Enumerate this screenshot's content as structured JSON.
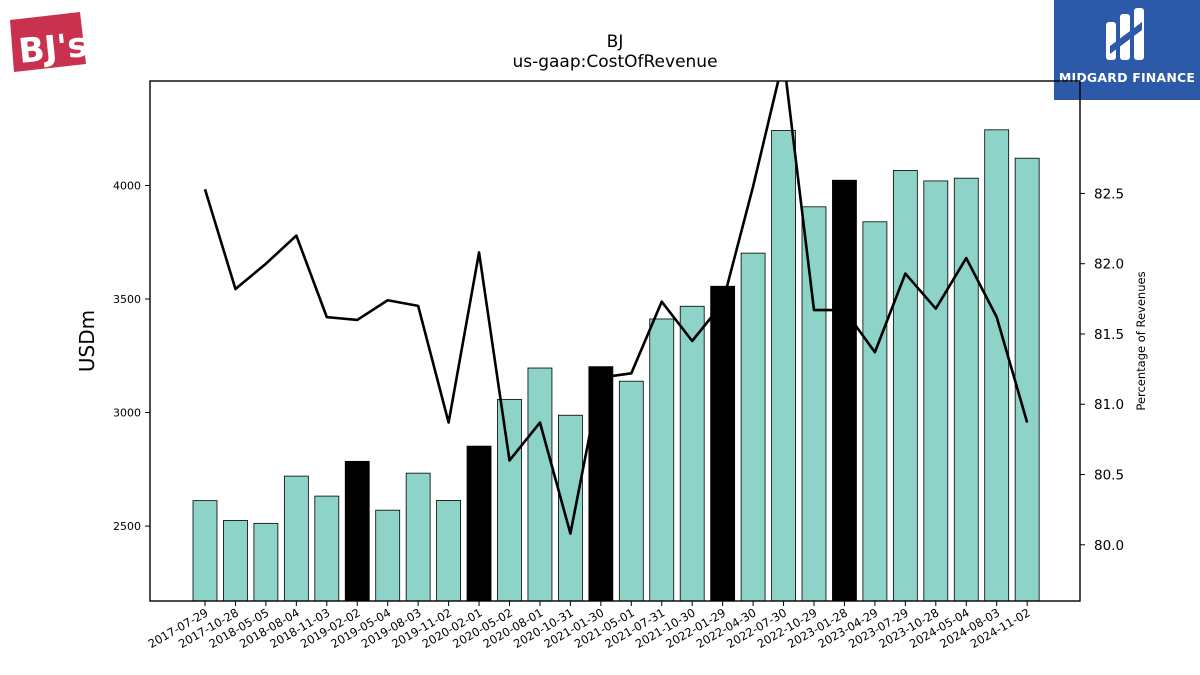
{
  "header": {
    "title": "BJ",
    "subtitle": "us-gaap:CostOfRevenue"
  },
  "logos": {
    "left": "BJ's",
    "right": "MIDGARD FINANCE"
  },
  "colors": {
    "bar_default": "#8dd3c7",
    "bar_highlight": "#000000",
    "line": "#000000",
    "logo_left": "#c8324e",
    "logo_right_bg": "#2c5aa8"
  },
  "chart_data": {
    "type": "bar",
    "categories": [
      "2017-07-29",
      "2017-10-28",
      "2018-05-05",
      "2018-08-04",
      "2018-11-03",
      "2019-02-02",
      "2019-05-04",
      "2019-08-03",
      "2019-11-02",
      "2020-02-01",
      "2020-05-02",
      "2020-08-01",
      "2020-10-31",
      "2021-01-30",
      "2021-05-01",
      "2021-07-31",
      "2021-10-30",
      "2022-01-29",
      "2022-04-30",
      "2022-07-30",
      "2022-10-29",
      "2023-01-28",
      "2023-04-29",
      "2023-07-29",
      "2023-10-28",
      "2024-05-04",
      "2024-08-03",
      "2024-11-02"
    ],
    "series": [
      {
        "axis": "left",
        "values": [
          2612,
          2525,
          2512,
          2720,
          2632,
          2785,
          2570,
          2733,
          2613,
          2852,
          3058,
          3196,
          2988,
          3202,
          3138,
          3412,
          3468,
          3556,
          3702,
          4242,
          3906,
          4023,
          3840,
          4066,
          4020,
          4032,
          4245,
          4120
        ],
        "highlight": [
          false,
          false,
          false,
          false,
          false,
          true,
          false,
          false,
          false,
          true,
          false,
          false,
          false,
          true,
          false,
          false,
          false,
          true,
          false,
          false,
          false,
          true,
          false,
          false,
          false,
          false,
          false,
          false
        ]
      },
      {
        "type": "line",
        "axis": "right",
        "values": [
          82.53,
          81.82,
          82.0,
          82.2,
          81.62,
          81.6,
          81.74,
          81.7,
          80.87,
          82.08,
          80.6,
          80.87,
          80.08,
          81.19,
          81.22,
          81.73,
          81.45,
          81.72,
          82.55,
          83.46,
          81.67,
          81.67,
          81.37,
          81.93,
          81.68,
          82.04,
          81.62,
          80.87
        ]
      }
    ],
    "ylabel": "USDm",
    "y2label": "Percentage of Revenues",
    "ylim": [
      2170,
      4460
    ],
    "y2lim": [
      79.6,
      83.3
    ],
    "yticks": [
      2500,
      3000,
      3500,
      4000
    ],
    "y2ticks": [
      80.0,
      80.5,
      81.0,
      81.5,
      82.0,
      82.5
    ],
    "grid": false
  }
}
